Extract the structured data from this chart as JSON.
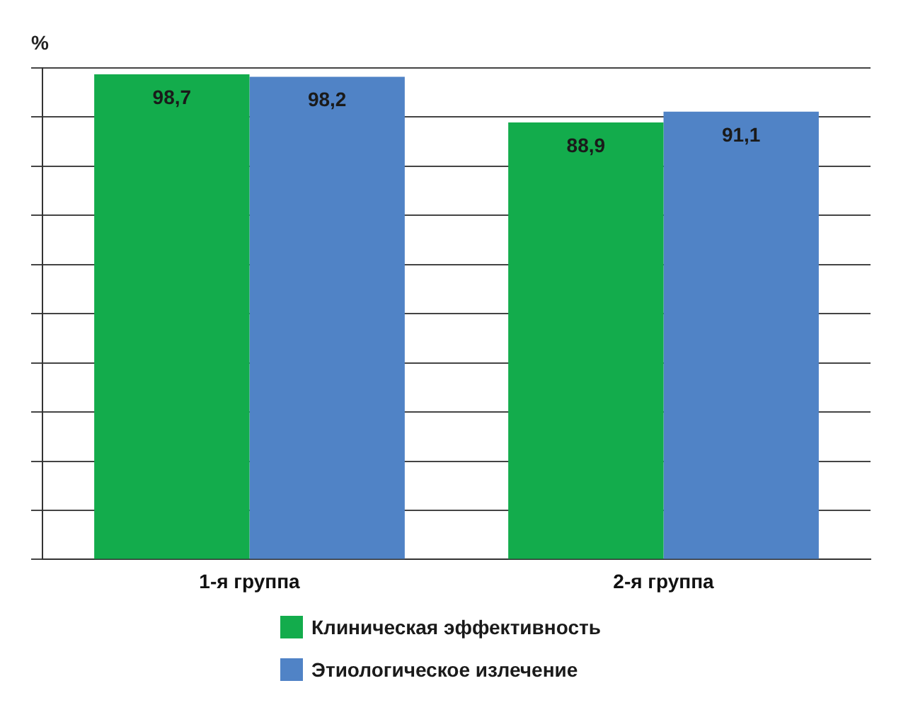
{
  "chart_data": {
    "type": "bar",
    "ylabel": "%",
    "categories": [
      "1-я группа",
      "2-я группа"
    ],
    "series": [
      {
        "name": "Клиническая эффективность",
        "color": "#13ac4c",
        "values": [
          98.7,
          88.9
        ],
        "value_labels": [
          "98,7",
          "88,9"
        ]
      },
      {
        "name": "Этиологическое излечение",
        "color": "#5083c6",
        "values": [
          98.2,
          91.1
        ],
        "value_labels": [
          "98,2",
          "91,1"
        ]
      }
    ],
    "grid": "y",
    "tick_labels": "x",
    "legend": "bottom"
  }
}
